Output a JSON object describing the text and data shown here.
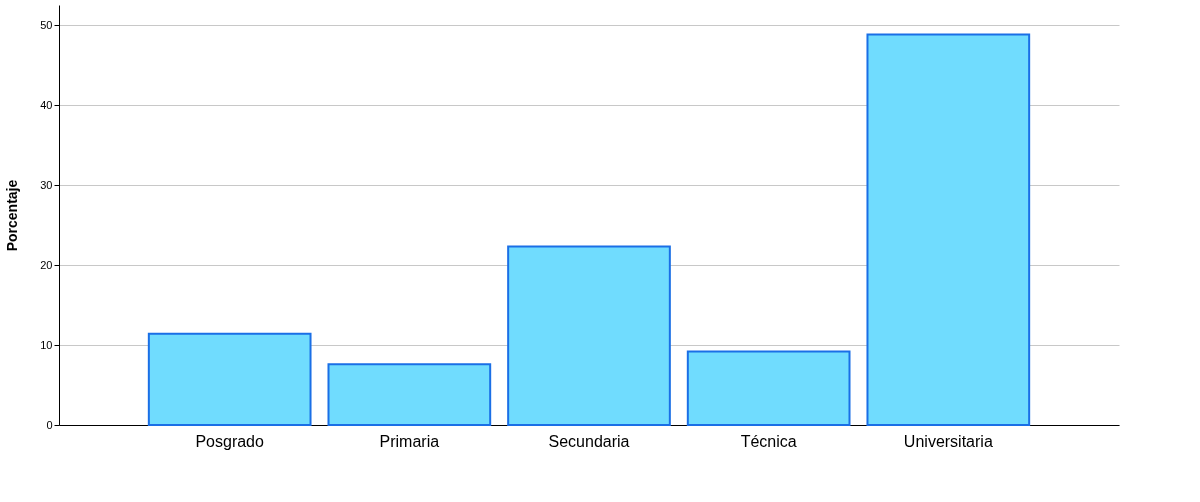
{
  "chart_data": {
    "type": "bar",
    "ylabel": "Porcentaje",
    "categories": [
      "Posgrado",
      "Primaria",
      "Secundaria",
      "Técnica",
      "Universitaria"
    ],
    "values": [
      11.4,
      7.6,
      22.3,
      9.2,
      48.8
    ],
    "color": "#70dcfe",
    "ylim": [
      0,
      52.5
    ],
    "yticks": [
      0,
      10,
      20,
      30,
      40,
      50
    ],
    "grid": "y"
  }
}
